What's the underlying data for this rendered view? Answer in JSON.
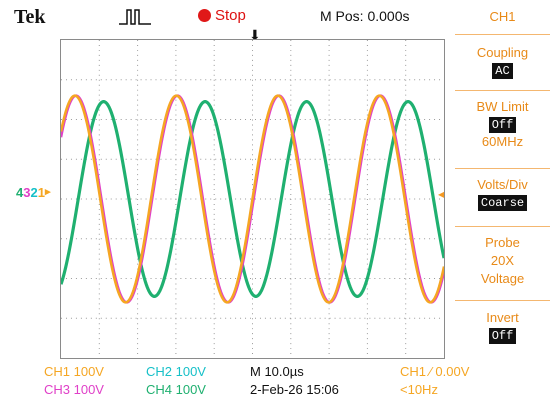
{
  "header": {
    "brand": "Tek",
    "trigger_icon": "pulse-icon",
    "run_status": "Stop",
    "horizontal_position": "M Pos: 0.000s"
  },
  "channel_marker_labels": [
    "4",
    "3",
    "2",
    "1"
  ],
  "side_menu": {
    "title": "CH1",
    "coupling": {
      "label": "Coupling",
      "value": "AC"
    },
    "bw_limit": {
      "label": "BW Limit",
      "value": "Off",
      "extra": "60MHz"
    },
    "volts_div": {
      "label": "Volts/Div",
      "value": "Coarse"
    },
    "probe": {
      "label": "Probe",
      "line1": "20X",
      "line2": "Voltage"
    },
    "invert": {
      "label": "Invert",
      "value": "Off"
    }
  },
  "readouts": {
    "ch1": "CH1  100V",
    "ch2": "CH2  100V",
    "ch3": "CH3  100V",
    "ch4": "CH4  100V",
    "timebase": "M 10.0µs",
    "date": "2-Feb-26 15:06",
    "trigger": "CH1 ∕ 0.00V",
    "frequency": "<10Hz"
  },
  "colors": {
    "ch1": "#f5a623",
    "ch2": "#16c0c8",
    "ch3": "#e040c8",
    "ch4": "#1fb070",
    "menu": "#e88a18",
    "stop": "#e01818"
  },
  "chart_data": {
    "type": "line",
    "x_unit": "divisions",
    "y_unit": "divisions",
    "xlim": [
      0,
      10
    ],
    "ylim": [
      -4,
      4
    ],
    "grid": true,
    "series": [
      {
        "name": "CH1",
        "waveform": "sine",
        "amplitude_div": 2.6,
        "period_div": 2.65,
        "phase_div": 2.35
      },
      {
        "name": "CH3",
        "waveform": "sine",
        "amplitude_div": 2.6,
        "period_div": 2.65,
        "phase_div": 2.38
      },
      {
        "name": "CH4",
        "waveform": "sine",
        "amplitude_div": 2.45,
        "period_div": 2.65,
        "phase_div": 3.1
      }
    ]
  }
}
